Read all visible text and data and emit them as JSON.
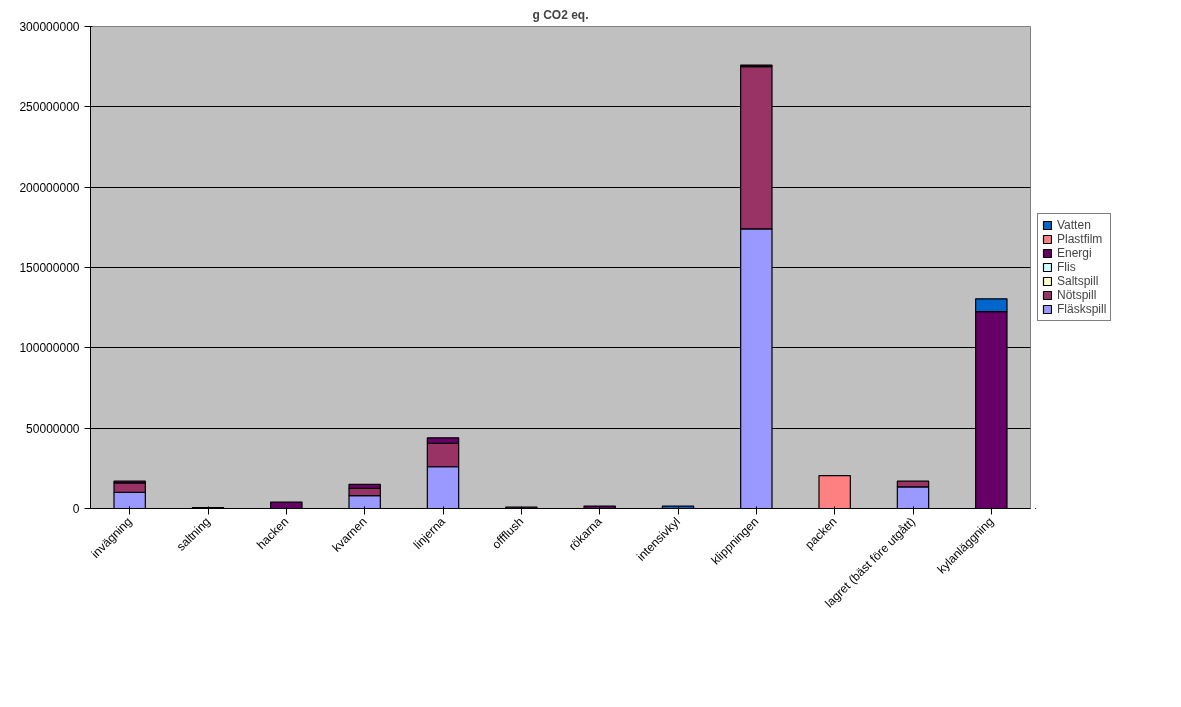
{
  "chart_data": {
    "type": "bar",
    "title": "g CO2 eq.",
    "stacked": true,
    "categories": [
      "invägning",
      "saltning",
      "hacken",
      "kvarnen",
      "linjerna",
      "offflush",
      "rökarna",
      "intensivkyl",
      "klippningen",
      "packen",
      "lagret (bäst före utgått)",
      "kylanläggning"
    ],
    "series": [
      {
        "name": "Fläskspill",
        "color": "#9999ff",
        "values": [
          10000000,
          null,
          null,
          8000000,
          26000000,
          null,
          null,
          null,
          174000000,
          null,
          13500000,
          null
        ]
      },
      {
        "name": "Nötspill",
        "color": "#993366",
        "values": [
          6000000,
          null,
          null,
          4500000,
          14500000,
          null,
          null,
          null,
          101000000,
          null,
          3500000,
          null
        ]
      },
      {
        "name": "Saltspill",
        "color": "#ffffcc",
        "values": [
          null,
          null,
          null,
          null,
          null,
          null,
          null,
          null,
          null,
          null,
          null,
          null
        ]
      },
      {
        "name": "Flis",
        "color": "#ccffff",
        "values": [
          null,
          null,
          null,
          null,
          null,
          null,
          null,
          null,
          null,
          null,
          null,
          null
        ]
      },
      {
        "name": "Energi",
        "color": "#660066",
        "values": [
          1000000,
          500000,
          4000000,
          2500000,
          3500000,
          800000,
          1500000,
          null,
          1000000,
          null,
          null,
          122500000
        ]
      },
      {
        "name": "Plastfilm",
        "color": "#ff8080",
        "values": [
          null,
          null,
          null,
          null,
          null,
          null,
          null,
          null,
          null,
          20500000,
          null,
          null
        ]
      },
      {
        "name": "Vatten",
        "color": "#0066cc",
        "values": [
          null,
          null,
          null,
          null,
          null,
          null,
          null,
          1500000,
          null,
          null,
          null,
          8000000
        ]
      }
    ],
    "ylim": [
      0,
      300000000
    ],
    "yticks": [
      0,
      50000000,
      100000000,
      150000000,
      200000000,
      250000000,
      300000000
    ],
    "grid": "y",
    "legend": "right"
  }
}
